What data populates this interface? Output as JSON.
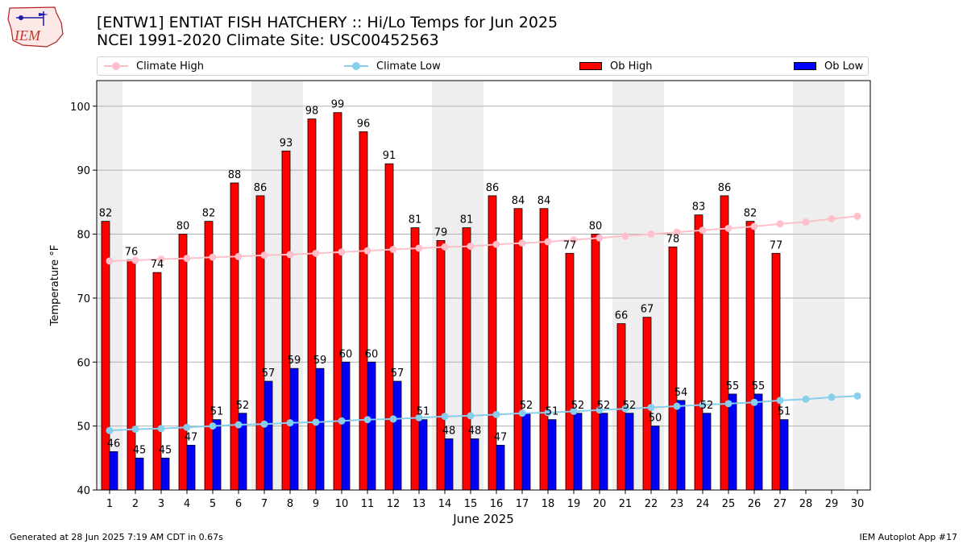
{
  "header": {
    "logo_text": "IEM",
    "title_line1": "[ENTW1] ENTIAT FISH HATCHERY :: Hi/Lo Temps for Jun 2025",
    "title_line2": "NCEI 1991-2020 Climate Site: USC00452563"
  },
  "legend": {
    "climate_high": "Climate High",
    "climate_low": "Climate Low",
    "ob_high": "Ob High",
    "ob_low": "Ob Low"
  },
  "footer": {
    "generated": "Generated at 28 Jun 2025 7:19 AM CDT in 0.67s",
    "app": "IEM Autoplot App #17"
  },
  "colors": {
    "ob_high": "#ff0000",
    "ob_low": "#0000ff",
    "climate_high": "#ffc0cb",
    "climate_low": "#87ceeb",
    "weekend_band": "#eeeeee",
    "grid": "#b0b0b0"
  },
  "chart_data": {
    "type": "bar",
    "xlabel": "June 2025",
    "ylabel": "Temperature °F",
    "ylim": [
      40,
      104
    ],
    "yticks": [
      40,
      50,
      60,
      70,
      80,
      90,
      100
    ],
    "grid": "horizontal",
    "legend_position": "top",
    "days": [
      1,
      2,
      3,
      4,
      5,
      6,
      7,
      8,
      9,
      10,
      11,
      12,
      13,
      14,
      15,
      16,
      17,
      18,
      19,
      20,
      21,
      22,
      23,
      24,
      25,
      26,
      27,
      28,
      29,
      30
    ],
    "weekend_days": [
      1,
      7,
      8,
      14,
      15,
      21,
      22,
      28,
      29
    ],
    "series": [
      {
        "name": "Ob High",
        "kind": "bar",
        "values": [
          82,
          76,
          74,
          80,
          82,
          88,
          86,
          93,
          98,
          99,
          96,
          91,
          81,
          79,
          81,
          86,
          84,
          84,
          77,
          80,
          66,
          67,
          78,
          83,
          86,
          82,
          77,
          null,
          null,
          null
        ]
      },
      {
        "name": "Ob Low",
        "kind": "bar",
        "values": [
          46,
          45,
          45,
          47,
          51,
          52,
          57,
          59,
          59,
          60,
          60,
          57,
          51,
          48,
          48,
          47,
          52,
          51,
          52,
          52,
          52,
          50,
          54,
          52,
          55,
          55,
          51,
          null,
          null,
          null
        ]
      },
      {
        "name": "Climate High",
        "kind": "line",
        "values": [
          75.8,
          75.9,
          76.1,
          76.2,
          76.4,
          76.5,
          76.7,
          76.8,
          77.0,
          77.2,
          77.4,
          77.6,
          77.8,
          78.0,
          78.1,
          78.4,
          78.6,
          78.8,
          79.1,
          79.4,
          79.7,
          80.0,
          80.3,
          80.6,
          80.9,
          81.2,
          81.6,
          81.9,
          82.4,
          82.8
        ]
      },
      {
        "name": "Climate Low",
        "kind": "line",
        "values": [
          49.3,
          49.5,
          49.6,
          49.8,
          50.0,
          50.2,
          50.3,
          50.5,
          50.6,
          50.8,
          51.0,
          51.1,
          51.3,
          51.5,
          51.6,
          51.8,
          52.0,
          52.1,
          52.3,
          52.5,
          52.7,
          52.9,
          53.1,
          53.3,
          53.5,
          53.7,
          54.0,
          54.2,
          54.5,
          54.7
        ]
      }
    ]
  }
}
